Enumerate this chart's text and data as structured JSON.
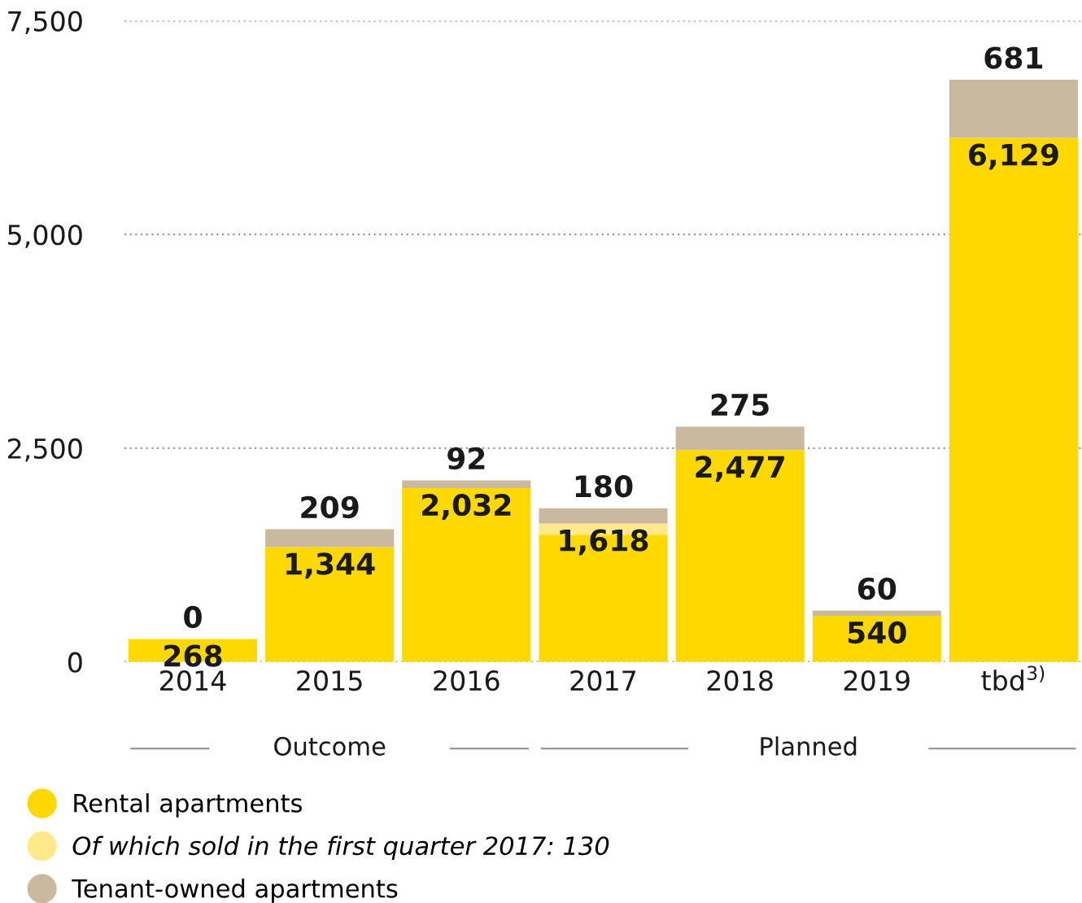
{
  "chart_data": {
    "type": "bar",
    "stacked": true,
    "categories": [
      "2014",
      "2015",
      "2016",
      "2017",
      "2018",
      "2019",
      "tbd$^{3)}$"
    ],
    "series": [
      {
        "name": "Rental apartments",
        "color": "#ffd800",
        "values": [
          268,
          1344,
          2032,
          1488,
          2477,
          540,
          6129
        ],
        "value_labels": [
          "268",
          "1,344",
          "2,032",
          null,
          "2,477",
          "540",
          "6,129"
        ]
      },
      {
        "name": "Of which sold in the first quarter 2017: 130",
        "color": "#ffe98a",
        "values": [
          0,
          0,
          0,
          130,
          0,
          0,
          0
        ]
      },
      {
        "name": "Tenant-owned apartments",
        "color": "#c9b99f",
        "values": [
          0,
          209,
          92,
          180,
          275,
          60,
          681
        ],
        "value_labels": [
          "0",
          "209",
          "92",
          "180",
          "275",
          "60",
          "681"
        ]
      }
    ],
    "ylim": [
      0,
      7500
    ],
    "yticks": [
      {
        "value": 0,
        "label": "0"
      },
      {
        "value": 2500,
        "label": "2,500"
      },
      {
        "value": 5000,
        "label": "5,000"
      },
      {
        "value": 7500,
        "label": "7,500"
      }
    ],
    "grid": "y",
    "legend": "bottom left",
    "annotations": [
      "Outcome",
      "Planned",
      {
        "text": "1,618",
        "x": "2017",
        "y": 1618
      }
    ]
  }
}
